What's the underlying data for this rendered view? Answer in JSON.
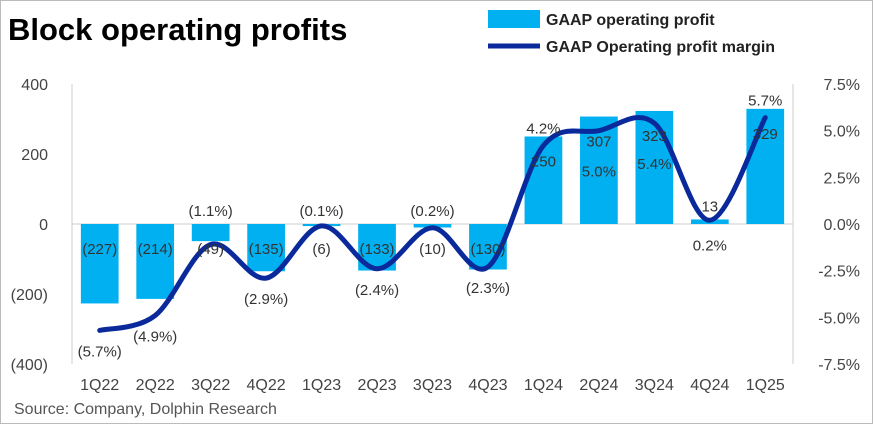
{
  "title": "Block operating profits",
  "source": "Source: Company, Dolphin Research",
  "chart_data": {
    "type": "bar+line",
    "title": "Block operating profits",
    "categories": [
      "1Q22",
      "2Q22",
      "3Q22",
      "4Q22",
      "1Q23",
      "2Q23",
      "3Q23",
      "4Q23",
      "1Q24",
      "2Q24",
      "3Q24",
      "4Q24",
      "1Q25"
    ],
    "series": [
      {
        "name": "GAAP operating profit",
        "type": "bar",
        "axis": "left",
        "color": "#00b0f0",
        "values": [
          -227,
          -214,
          -49,
          -135,
          -6,
          -133,
          -10,
          -130,
          250,
          307,
          323,
          13,
          329
        ],
        "labels": [
          "(227)",
          "(214)",
          "(49)",
          "(135)",
          "(6)",
          "(133)",
          "(10)",
          "(130)",
          "250",
          "307",
          "323",
          "13",
          "329"
        ]
      },
      {
        "name": "GAAP Operating profit margin",
        "type": "line",
        "axis": "right",
        "color": "#0a2a9c",
        "values": [
          -5.7,
          -4.9,
          -1.1,
          -2.9,
          -0.1,
          -2.4,
          -0.2,
          -2.3,
          4.2,
          5.0,
          5.4,
          0.2,
          5.7
        ],
        "labels": [
          "(5.7%)",
          "(4.9%)",
          "(1.1%)",
          "(2.9%)",
          "(0.1%)",
          "(2.4%)",
          "(0.2%)",
          "(2.3%)",
          "4.2%",
          "5.0%",
          "5.4%",
          "0.2%",
          "5.7%"
        ]
      }
    ],
    "left_axis": {
      "ylim": [
        -400,
        400
      ],
      "ticks": [
        "(400)",
        "(200)",
        "0",
        "200",
        "400"
      ],
      "tick_values": [
        -400,
        -200,
        0,
        200,
        400
      ]
    },
    "right_axis": {
      "ylim": [
        -7.5,
        7.5
      ],
      "ticks": [
        "-7.5%",
        "-5.0%",
        "-2.5%",
        "0.0%",
        "2.5%",
        "5.0%",
        "7.5%"
      ],
      "tick_values": [
        -7.5,
        -5,
        -2.5,
        0,
        2.5,
        5,
        7.5
      ]
    },
    "legend": "top-right",
    "grid": false
  }
}
